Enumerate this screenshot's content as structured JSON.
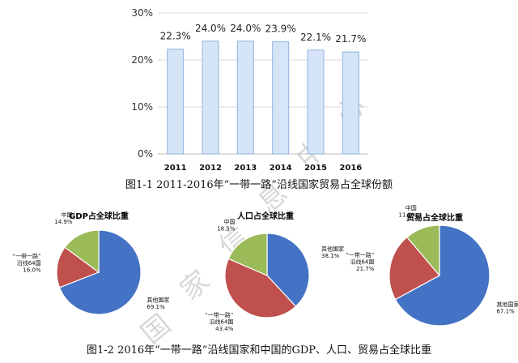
{
  "watermark": "国家信息中心",
  "chart_data": [
    {
      "type": "bar",
      "caption": "图1-1   2011-2016年“一带一路”沿线国家贸易占全球份额",
      "categories": [
        "2011",
        "2012",
        "2013",
        "2014",
        "2015",
        "2016"
      ],
      "values": [
        22.3,
        24.0,
        24.0,
        23.9,
        22.1,
        21.7
      ],
      "data_labels": [
        "22.3%",
        "24.0%",
        "24.0%",
        "23.9%",
        "22.1%",
        "21.7%"
      ],
      "ylim": [
        0,
        30
      ],
      "yticks": [
        "0%",
        "10%",
        "20%",
        "30%"
      ],
      "bar_fill": "#d6e4f7",
      "bar_stroke": "#8fb3e0"
    },
    {
      "type": "pie",
      "caption": "图1-2   2016年“一带一路”沿线国家和中国的GDP、人口、贸易占全球比重",
      "colors": {
        "other": "#4472c4",
        "belt": "#c0504d",
        "china": "#9bbb59"
      },
      "pies": [
        {
          "title": "GDP占全球比重",
          "slices": [
            {
              "key": "other",
              "name": "其他国家",
              "value": 69.1,
              "label": "69.1%"
            },
            {
              "key": "belt",
              "name": "“一带一路”沿线64国",
              "name_lines": [
                "“一带一路”",
                "沿线64国"
              ],
              "value": 16.0,
              "label": "16.0%"
            },
            {
              "key": "china",
              "name": "中国",
              "value": 14.9,
              "label": "14.9%"
            }
          ]
        },
        {
          "title": "人口占全球比重",
          "slices": [
            {
              "key": "other",
              "name": "其他国家",
              "value": 38.1,
              "label": "38.1%"
            },
            {
              "key": "belt",
              "name": "“一带一路”沿线64国",
              "name_lines": [
                "“一带一路”",
                "沿线64国"
              ],
              "value": 43.4,
              "label": "43.4%"
            },
            {
              "key": "china",
              "name": "中国",
              "value": 18.5,
              "label": "18.5%"
            }
          ]
        },
        {
          "title": "贸易占全球比重",
          "slices": [
            {
              "key": "other",
              "name": "其他国家",
              "value": 67.1,
              "label": "67.1%"
            },
            {
              "key": "belt",
              "name": "“一带一路”沿线64国",
              "name_lines": [
                "“一带一路”",
                "沿线64国"
              ],
              "value": 21.7,
              "label": "21.7%"
            },
            {
              "key": "china",
              "name": "中国",
              "value": 11.2,
              "label": "11.2%"
            }
          ]
        }
      ]
    }
  ]
}
